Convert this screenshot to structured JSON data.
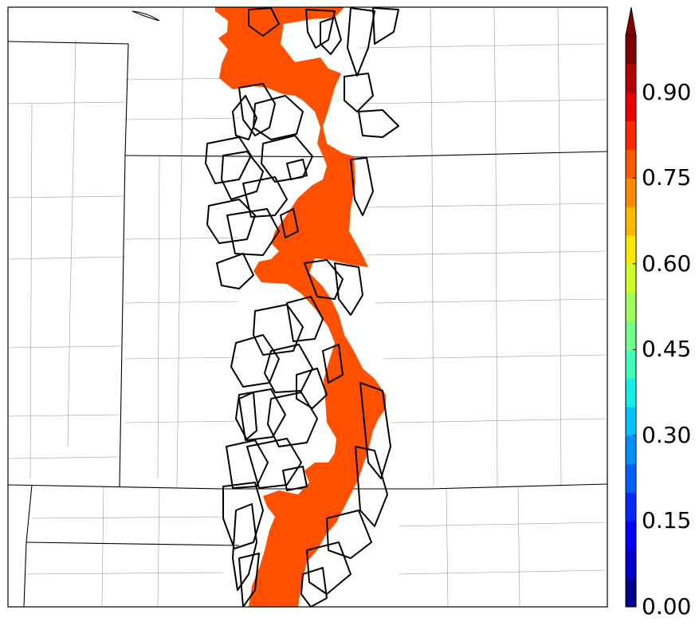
{
  "colorbar": {
    "ticks": [
      "0.00",
      "0.15",
      "0.30",
      "0.45",
      "0.60",
      "0.75",
      "0.90"
    ],
    "tick_values": [
      0.0,
      0.15,
      0.3,
      0.45,
      0.6,
      0.75,
      0.9
    ],
    "range": [
      0.0,
      1.0
    ],
    "extend": "max",
    "colors": [
      "#00008f",
      "#0000c8",
      "#0000ff",
      "#0028ff",
      "#0060ff",
      "#0090ff",
      "#00c0ff",
      "#10f0e8",
      "#40ffb8",
      "#70ff88",
      "#a0ff58",
      "#d0ff28",
      "#ffe800",
      "#ffb800",
      "#ff8800",
      "#ff5800",
      "#ff2800",
      "#e80000",
      "#b00000",
      "#800000"
    ]
  },
  "map": {
    "probability_fill_color": "#ff5000",
    "contour_color": "#000000",
    "border_color": "#000000"
  }
}
